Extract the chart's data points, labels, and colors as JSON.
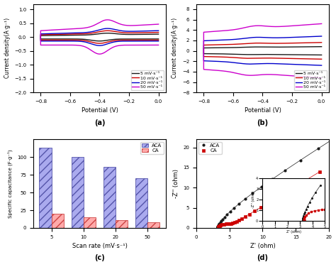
{
  "fig_bg": "#ffffff",
  "subplot_a": {
    "xlabel": "Potential (V)",
    "ylabel": "Current density(A·g⁻¹)",
    "label": "(a)",
    "xlim": [
      -0.85,
      0.05
    ],
    "ylim": [
      -2.0,
      1.2
    ],
    "yticks": [
      -2.0,
      -1.5,
      -1.0,
      -0.5,
      0.0,
      0.5,
      1.0
    ],
    "xticks": [
      -0.8,
      -0.6,
      -0.4,
      -0.2,
      0.0
    ],
    "curves": [
      {
        "scan": "5 mV·s⁻¹",
        "color": "#1a1a1a",
        "lw": 1.0
      },
      {
        "scan": "10 mV·s⁻¹",
        "color": "#cc0000",
        "lw": 1.0
      },
      {
        "scan": "20 mV·s⁻¹",
        "color": "#0000cc",
        "lw": 1.0
      },
      {
        "scan": "50 mV·s⁻¹",
        "color": "#cc00cc",
        "lw": 1.0
      }
    ],
    "scales": [
      0.3,
      0.48,
      0.65,
      1.3
    ]
  },
  "subplot_b": {
    "xlabel": "Potential (V)",
    "ylabel": "Current density(A·g⁻¹)",
    "label": "(b)",
    "xlim": [
      -0.85,
      0.05
    ],
    "ylim": [
      -8,
      9
    ],
    "yticks": [
      -8,
      -6,
      -4,
      -2,
      0,
      2,
      4,
      6,
      8
    ],
    "xticks": [
      -0.8,
      -0.6,
      -0.4,
      -0.2,
      0.0
    ],
    "curves": [
      {
        "scan": "5 mV·s⁻¹",
        "color": "#1a1a1a",
        "lw": 1.0
      },
      {
        "scan": "10 mV·s⁻¹",
        "color": "#cc0000",
        "lw": 1.0
      },
      {
        "scan": "20 mV·s⁻¹",
        "color": "#0000cc",
        "lw": 1.0
      },
      {
        "scan": "50 mV·s⁻¹",
        "color": "#cc00cc",
        "lw": 1.0
      }
    ],
    "scales": [
      1.0,
      2.0,
      3.5,
      6.5
    ]
  },
  "subplot_c": {
    "xlabel": "Scan rate (mV·s⁻¹)",
    "ylabel": "Specific capacitance (F·g⁻¹)",
    "label": "(c)",
    "categories": [
      5,
      10,
      20,
      50
    ],
    "ACA_values": [
      113,
      100,
      86,
      70
    ],
    "CA_values": [
      20,
      15,
      11,
      8
    ],
    "ACA_color": "#aaaaee",
    "ACA_edge": "#5555aa",
    "CA_color": "#ffaaaa",
    "CA_edge": "#cc4444",
    "ylim": [
      0,
      125
    ],
    "yticks": [
      0,
      25,
      50,
      75,
      100
    ]
  },
  "subplot_d": {
    "xlabel": "Z' (ohm)",
    "ylabel": "-Z'' (ohm)",
    "label": "(d)",
    "xlim": [
      0,
      20
    ],
    "ylim": [
      0,
      22
    ],
    "xticks": [
      0,
      5,
      10,
      15,
      20
    ],
    "yticks": [
      0,
      5,
      10,
      15,
      20
    ],
    "ACA_color": "#1a1a1a",
    "CA_color": "#cc0000"
  }
}
